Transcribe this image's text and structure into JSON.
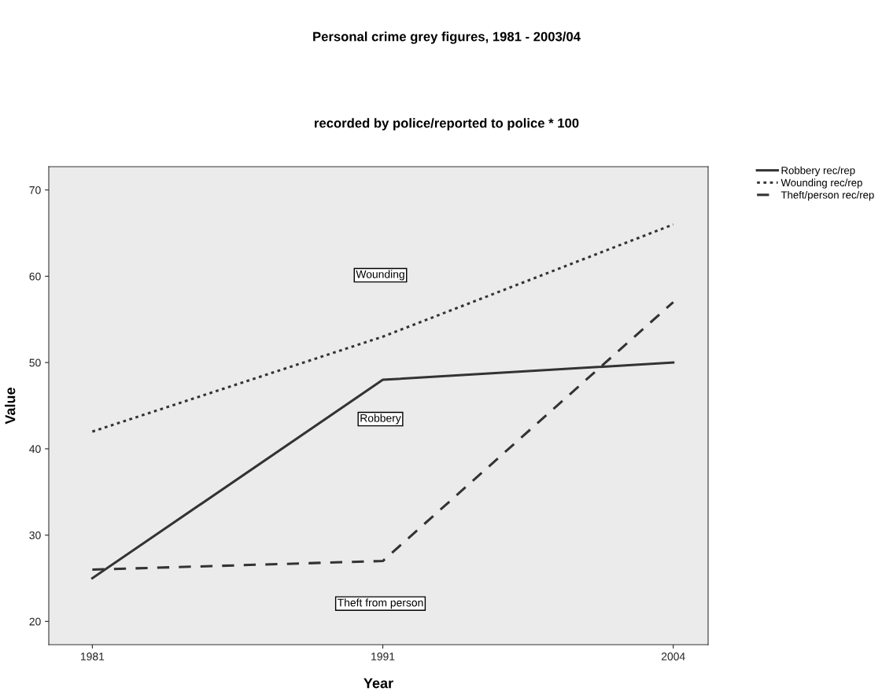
{
  "chart_data": {
    "type": "line",
    "title": "Personal crime grey figures, 1981 - 2003/04",
    "subtitle": "recorded by police/reported to police * 100",
    "xlabel": "Year",
    "ylabel": "Value",
    "categories": [
      "1981",
      "1991",
      "2004"
    ],
    "series": [
      {
        "name": "Robbery rec/rep",
        "color": "#333333",
        "line_style": "solid",
        "values": [
          25,
          48,
          50
        ]
      },
      {
        "name": "Wounding rec/rep",
        "color": "#333333",
        "line_style": "dotted",
        "values": [
          42,
          53,
          66
        ]
      },
      {
        "name": "Theft/person rec/rep",
        "color": "#333333",
        "line_style": "dashed",
        "values": [
          26,
          27,
          57
        ]
      }
    ],
    "ylim": [
      17.3,
      72.7
    ],
    "yticks": [
      20,
      30,
      40,
      50,
      60,
      70
    ],
    "grid": false,
    "legend": "top right",
    "marker": "none",
    "annotations": [
      "Wounding",
      "Robbery",
      "Theft from person"
    ]
  }
}
